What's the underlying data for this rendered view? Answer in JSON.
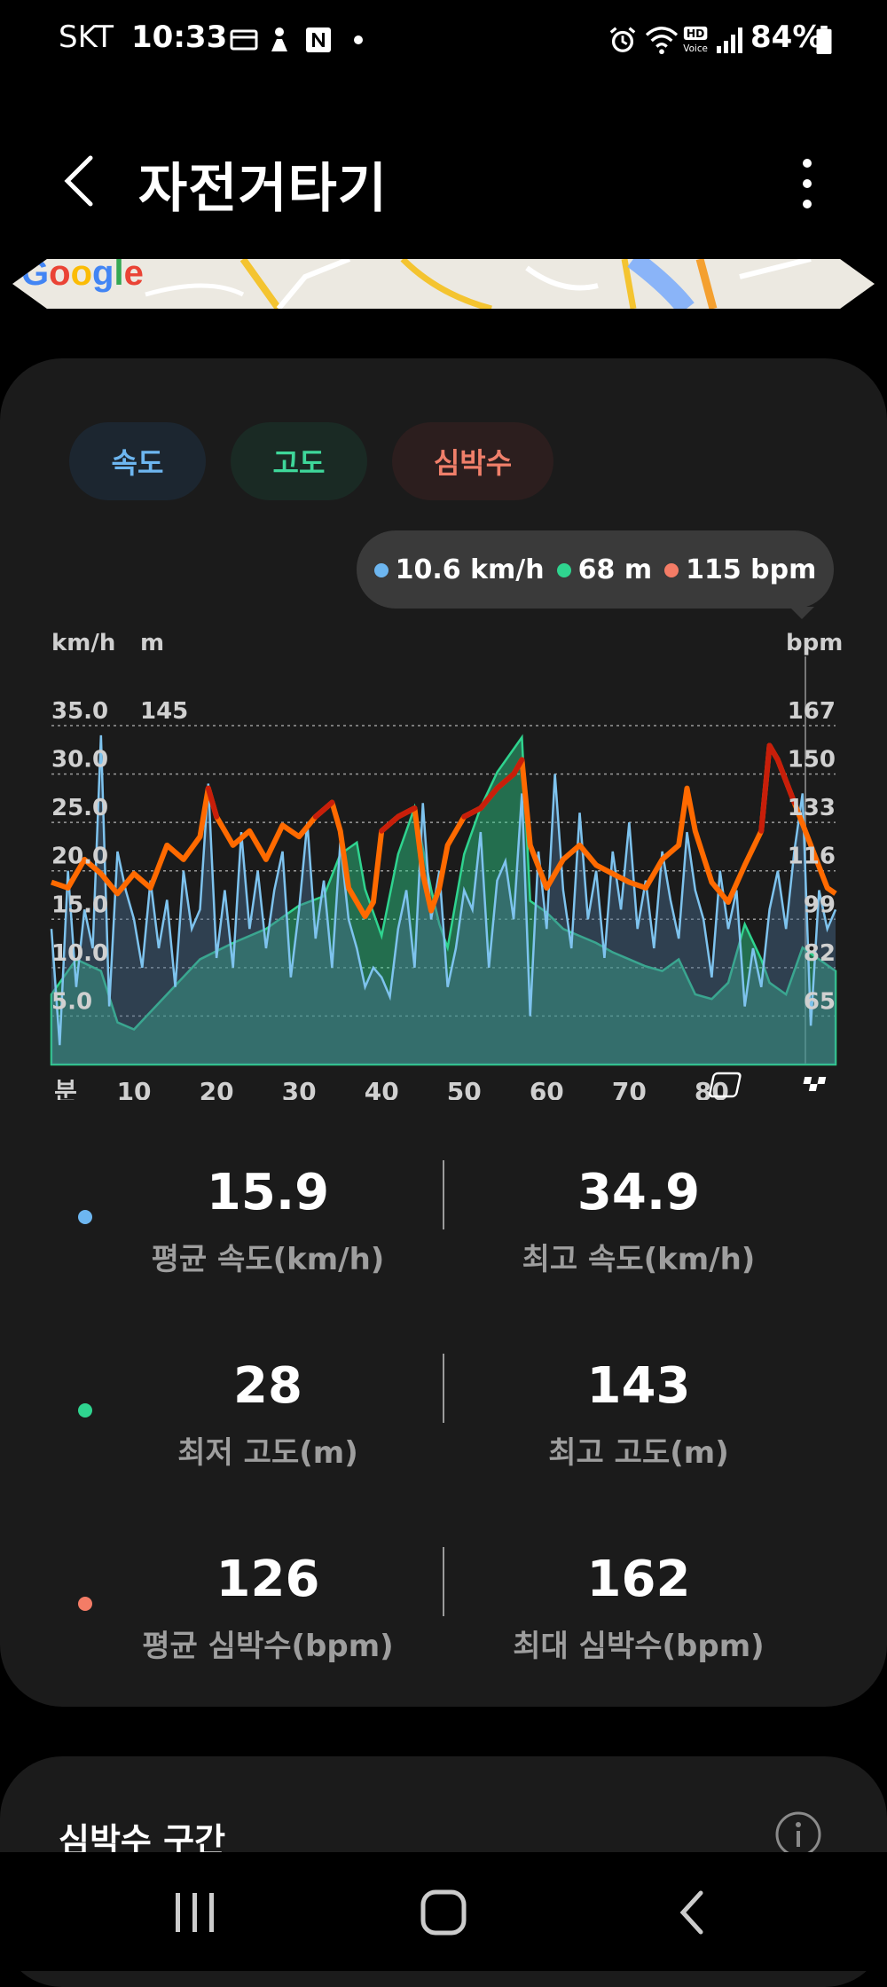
{
  "status_bar": {
    "carrier": "SKT",
    "time": "10:33",
    "battery": "84%"
  },
  "header": {
    "title": "자전거타기"
  },
  "map": {
    "logo": "Google"
  },
  "chips": {
    "speed": "속도",
    "altitude": "고도",
    "heart_rate": "심박수"
  },
  "tooltip": {
    "speed": "10.6 km/h",
    "altitude": "68 m",
    "heart_rate": "115 bpm"
  },
  "colors": {
    "speed": "#6db6f0",
    "altitude": "#2fd48f",
    "heart_rate": "#f47c66",
    "hr_line": "#ff6a00",
    "hr_peak": "#c81e0a"
  },
  "chart_data": {
    "type": "line",
    "units": {
      "speed": "km/h",
      "altitude": "m",
      "heart_rate": "bpm"
    },
    "speed_ticks": [
      "35.0",
      "30.0",
      "25.0",
      "20.0",
      "15.0",
      "10.0",
      "5.0"
    ],
    "altitude_ticks": [
      "145"
    ],
    "hr_ticks": [
      "167",
      "150",
      "133",
      "116",
      "99",
      "82",
      "65"
    ],
    "x_ticks": [
      "분",
      "10",
      "20",
      "30",
      "40",
      "50",
      "60",
      "70",
      "80"
    ],
    "x_range": [
      0,
      95
    ],
    "speed_range": [
      0,
      35
    ],
    "hr_range": [
      48,
      167
    ],
    "altitude_range": [
      0,
      145
    ],
    "grid": true,
    "series": [
      {
        "key": "altitude",
        "x": [
          0,
          3,
          6,
          8,
          10,
          14,
          18,
          22,
          26,
          30,
          33,
          35,
          37,
          38,
          40,
          42,
          44,
          46,
          47,
          48,
          50,
          52,
          54,
          56,
          57,
          58,
          60,
          62,
          64,
          66,
          68,
          70,
          72,
          74,
          76,
          78,
          80,
          82,
          84,
          86,
          87,
          89,
          91,
          93,
          95
        ],
        "values": [
          30,
          45,
          40,
          18,
          15,
          30,
          45,
          52,
          58,
          68,
          72,
          90,
          95,
          75,
          55,
          90,
          110,
          75,
          60,
          50,
          90,
          110,
          125,
          135,
          140,
          70,
          65,
          58,
          55,
          52,
          48,
          45,
          42,
          40,
          45,
          30,
          28,
          35,
          60,
          45,
          35,
          30,
          50,
          45,
          40
        ]
      },
      {
        "key": "heart_rate",
        "x": [
          0,
          2,
          4,
          6,
          8,
          10,
          12,
          14,
          16,
          18,
          19,
          20,
          22,
          24,
          26,
          28,
          30,
          32,
          34,
          35,
          36,
          38,
          39,
          40,
          42,
          44,
          45,
          46,
          47,
          48,
          50,
          52,
          54,
          56,
          57,
          58,
          60,
          62,
          64,
          66,
          68,
          70,
          72,
          74,
          76,
          77,
          78,
          80,
          82,
          84,
          86,
          87,
          88,
          90,
          92,
          94,
          95
        ],
        "values": [
          112,
          110,
          120,
          115,
          108,
          115,
          110,
          125,
          120,
          128,
          145,
          135,
          125,
          130,
          120,
          132,
          128,
          135,
          140,
          130,
          110,
          100,
          105,
          130,
          135,
          138,
          115,
          102,
          110,
          125,
          135,
          138,
          145,
          150,
          155,
          125,
          110,
          120,
          125,
          118,
          115,
          112,
          110,
          120,
          125,
          145,
          130,
          112,
          105,
          118,
          130,
          160,
          155,
          140,
          125,
          110,
          108
        ]
      },
      {
        "key": "speed",
        "x": [
          0,
          1,
          2,
          3,
          4,
          5,
          6,
          7,
          8,
          9,
          10,
          11,
          12,
          13,
          14,
          15,
          16,
          17,
          18,
          19,
          20,
          21,
          22,
          23,
          24,
          25,
          26,
          27,
          28,
          29,
          30,
          31,
          32,
          33,
          34,
          35,
          36,
          37,
          38,
          39,
          40,
          41,
          42,
          43,
          44,
          45,
          46,
          47,
          48,
          49,
          50,
          51,
          52,
          53,
          54,
          55,
          56,
          57,
          58,
          59,
          60,
          61,
          62,
          63,
          64,
          65,
          66,
          67,
          68,
          69,
          70,
          71,
          72,
          73,
          74,
          75,
          76,
          77,
          78,
          79,
          80,
          81,
          82,
          83,
          84,
          85,
          86,
          87,
          88,
          89,
          90,
          91,
          92,
          93,
          94,
          95
        ],
        "values": [
          14,
          2,
          20,
          8,
          16,
          12,
          34,
          6,
          22,
          18,
          15,
          10,
          19,
          12,
          17,
          8,
          20,
          14,
          16,
          29,
          11,
          18,
          10,
          24,
          14,
          20,
          12,
          18,
          22,
          9,
          16,
          25,
          13,
          19,
          10,
          23,
          15,
          12,
          8,
          10,
          9,
          7,
          14,
          18,
          10,
          27,
          15,
          20,
          8,
          12,
          18,
          16,
          24,
          10,
          19,
          21,
          15,
          28,
          5,
          22,
          14,
          30,
          18,
          12,
          26,
          15,
          20,
          11,
          22,
          16,
          25,
          14,
          19,
          12,
          22,
          17,
          13,
          24,
          18,
          15,
          9,
          20,
          14,
          18,
          6,
          12,
          8,
          16,
          20,
          14,
          22,
          28,
          4,
          18,
          14,
          16
        ]
      }
    ]
  },
  "stats": [
    {
      "value": "15.9",
      "label": "평균 속도(km/h)"
    },
    {
      "value": "34.9",
      "label": "최고 속도(km/h)"
    },
    {
      "value": "28",
      "label": "최저 고도(m)"
    },
    {
      "value": "143",
      "label": "최고 고도(m)"
    },
    {
      "value": "126",
      "label": "평균 심박수(bpm)"
    },
    {
      "value": "162",
      "label": "최대 심박수(bpm)"
    }
  ],
  "hr_zone": {
    "title": "심박수 구간"
  }
}
